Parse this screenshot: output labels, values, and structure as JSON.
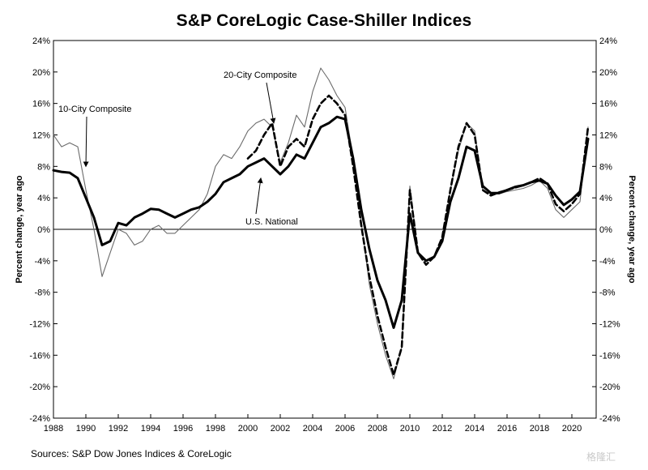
{
  "page": {
    "title": "S&P CoreLogic Case-Shiller Indices",
    "source": "Sources: S&P Dow Jones Indices & CoreLogic",
    "watermark": "格隆汇"
  },
  "chart_data": {
    "type": "line",
    "title": "S&P CoreLogic Case-Shiller Indices",
    "ylabel_left": "Percent change, year ago",
    "ylabel_right": "Percent change, year ago",
    "xlim": [
      1988,
      2021.5
    ],
    "ylim": [
      -24,
      24
    ],
    "x_ticks": [
      1988,
      1990,
      1992,
      1994,
      1996,
      1998,
      2000,
      2002,
      2004,
      2006,
      2008,
      2010,
      2012,
      2014,
      2016,
      2018,
      2020
    ],
    "x_tick_labels": [
      "1988",
      "1990",
      "1992",
      "1994",
      "1996",
      "1998",
      "2000",
      "2002",
      "2004",
      "2006",
      "2008",
      "2010",
      "2012",
      "2014",
      "2016",
      "2018",
      "2020"
    ],
    "y_ticks": [
      -24,
      -20,
      -16,
      -12,
      -8,
      -4,
      0,
      4,
      8,
      12,
      16,
      20,
      24
    ],
    "y_tick_labels": [
      "-24%",
      "-20%",
      "-16%",
      "-12%",
      "-8%",
      "-4%",
      "0%",
      "4%",
      "8%",
      "12%",
      "16%",
      "20%",
      "24%"
    ],
    "grid": false,
    "zero_line": true,
    "annotations": [
      {
        "text": "10-City Composite",
        "series": "10-City Composite",
        "points_to": [
          1990.0,
          8.0
        ]
      },
      {
        "text": "20-City Composite",
        "series": "20-City Composite",
        "points_to": [
          2001.6,
          13.5
        ]
      },
      {
        "text": "U.S. National",
        "series": "U.S. National",
        "points_to": [
          2000.8,
          6.5
        ]
      }
    ],
    "series": [
      {
        "name": "U.S. National",
        "color": "#000000",
        "style": "thick-solid",
        "x": [
          1988,
          1988.5,
          1989,
          1989.5,
          1990,
          1990.5,
          1991,
          1991.5,
          1992,
          1992.5,
          1993,
          1993.5,
          1994,
          1994.5,
          1995,
          1995.5,
          1996,
          1996.5,
          1997,
          1997.5,
          1998,
          1998.5,
          1999,
          1999.5,
          2000,
          2000.5,
          2001,
          2001.5,
          2002,
          2002.5,
          2003,
          2003.5,
          2004,
          2004.5,
          2005,
          2005.5,
          2006,
          2006.5,
          2007,
          2007.5,
          2008,
          2008.5,
          2009,
          2009.5,
          2010,
          2010.5,
          2011,
          2011.5,
          2012,
          2012.5,
          2013,
          2013.5,
          2014,
          2014.5,
          2015,
          2015.5,
          2016,
          2016.5,
          2017,
          2017.5,
          2018,
          2018.5,
          2019,
          2019.5,
          2020,
          2020.5,
          2021
        ],
        "y": [
          7.5,
          7.3,
          7.2,
          6.5,
          4.0,
          1.5,
          -2.0,
          -1.5,
          0.8,
          0.5,
          1.5,
          2.0,
          2.6,
          2.5,
          2.0,
          1.5,
          2.0,
          2.5,
          2.8,
          3.5,
          4.5,
          6.0,
          6.5,
          7.0,
          8.0,
          8.5,
          9.0,
          8.0,
          7.0,
          8.0,
          9.5,
          9.0,
          11.0,
          13.0,
          13.5,
          14.3,
          14.0,
          9.0,
          2.5,
          -2.5,
          -6.5,
          -9.0,
          -12.5,
          -9.0,
          2.0,
          -3.0,
          -4.0,
          -3.5,
          -1.5,
          3.5,
          6.5,
          10.5,
          10.0,
          5.5,
          4.6,
          4.6,
          5.0,
          5.4,
          5.6,
          6.0,
          6.2,
          5.8,
          4.3,
          3.1,
          3.8,
          4.8,
          11.5
        ]
      },
      {
        "name": "20-City Composite",
        "color": "#000000",
        "style": "thick-dashed",
        "x": [
          2000,
          2000.5,
          2001,
          2001.5,
          2002,
          2002.5,
          2003,
          2003.5,
          2004,
          2004.5,
          2005,
          2005.5,
          2006,
          2006.5,
          2007,
          2007.5,
          2008,
          2008.5,
          2009,
          2009.5,
          2010,
          2010.5,
          2011,
          2011.5,
          2012,
          2012.5,
          2013,
          2013.5,
          2014,
          2014.5,
          2015,
          2015.5,
          2016,
          2016.5,
          2017,
          2017.5,
          2018,
          2018.5,
          2019,
          2019.5,
          2020,
          2020.5,
          2021
        ],
        "y": [
          9.0,
          10.0,
          12.0,
          13.5,
          8.0,
          10.5,
          11.5,
          10.5,
          14.0,
          16.0,
          17.0,
          16.0,
          14.5,
          8.0,
          0.5,
          -6.0,
          -11.0,
          -15.0,
          -18.5,
          -15.0,
          5.0,
          -3.0,
          -4.5,
          -3.5,
          -1.0,
          5.0,
          10.5,
          13.5,
          12.0,
          5.0,
          4.3,
          4.7,
          5.0,
          5.3,
          5.6,
          6.0,
          6.5,
          5.8,
          3.2,
          2.3,
          3.2,
          4.5,
          13.0
        ]
      },
      {
        "name": "10-City Composite",
        "color": "#6b6b6b",
        "style": "thin-solid",
        "x": [
          1988,
          1988.5,
          1989,
          1989.5,
          1990,
          1990.5,
          1991,
          1991.5,
          1992,
          1992.5,
          1993,
          1993.5,
          1994,
          1994.5,
          1995,
          1995.5,
          1996,
          1996.5,
          1997,
          1997.5,
          1998,
          1998.5,
          1999,
          1999.5,
          2000,
          2000.5,
          2001,
          2001.5,
          2002,
          2002.5,
          2003,
          2003.5,
          2004,
          2004.5,
          2005,
          2005.5,
          2006,
          2006.5,
          2007,
          2007.5,
          2008,
          2008.5,
          2009,
          2009.5,
          2010,
          2010.5,
          2011,
          2011.5,
          2012,
          2012.5,
          2013,
          2013.5,
          2014,
          2014.5,
          2015,
          2015.5,
          2016,
          2016.5,
          2017,
          2017.5,
          2018,
          2018.5,
          2019,
          2019.5,
          2020,
          2020.5,
          2021
        ],
        "y": [
          12.0,
          10.5,
          11.0,
          10.5,
          5.0,
          0.0,
          -6.0,
          -3.0,
          0.0,
          -0.5,
          -2.0,
          -1.5,
          0.0,
          0.5,
          -0.5,
          -0.5,
          0.5,
          1.5,
          2.5,
          4.5,
          8.0,
          9.5,
          9.0,
          10.5,
          12.5,
          13.5,
          14.0,
          13.0,
          8.5,
          11.0,
          14.5,
          13.0,
          17.5,
          20.5,
          19.0,
          17.0,
          15.5,
          9.0,
          1.0,
          -7.0,
          -12.0,
          -16.0,
          -19.0,
          -15.0,
          5.5,
          -3.0,
          -4.0,
          -3.5,
          -1.5,
          5.0,
          10.0,
          13.5,
          12.5,
          5.0,
          4.5,
          4.5,
          4.8,
          5.0,
          5.2,
          5.6,
          6.2,
          5.2,
          2.5,
          1.5,
          2.5,
          3.5,
          13.0
        ]
      }
    ]
  }
}
